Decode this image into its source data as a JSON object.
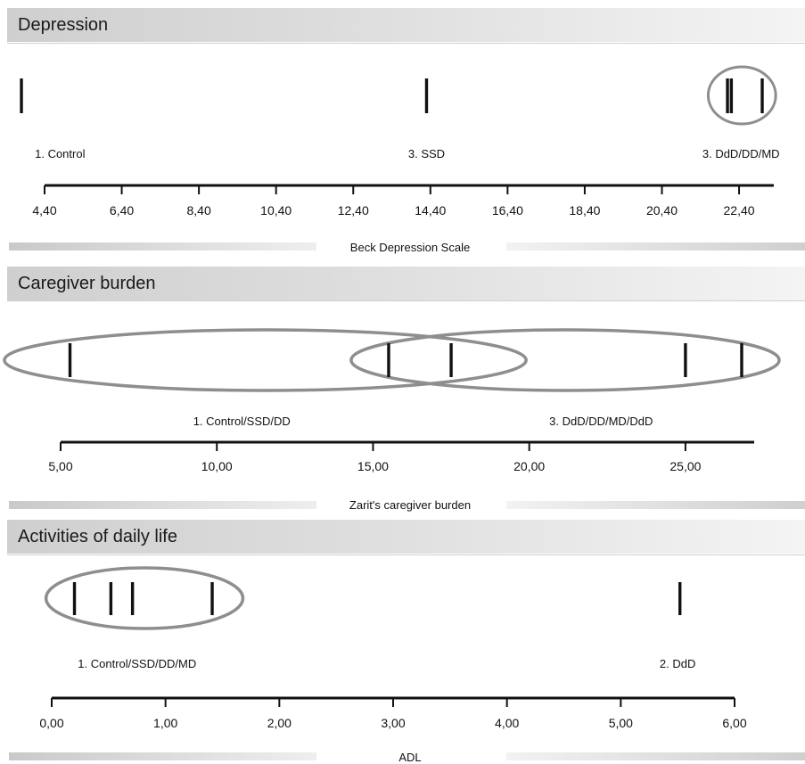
{
  "chart_data": [
    {
      "type": "scatter",
      "title": "Depression",
      "xlabel": "Beck Depression Scale",
      "xlim": [
        4.4,
        23.3
      ],
      "tick_values": [
        4.4,
        6.4,
        8.4,
        10.4,
        12.4,
        14.4,
        16.4,
        18.4,
        20.4,
        22.4
      ],
      "tick_labels": [
        "4,40",
        "6,40",
        "8,40",
        "10,40",
        "12,40",
        "14,40",
        "16,40",
        "18,40",
        "20,40",
        "22,40"
      ],
      "points": [
        3.8,
        14.3,
        22.1,
        22.2,
        23.0
      ],
      "groups": [
        {
          "label": "1. Control",
          "center": 4.8,
          "circled": false
        },
        {
          "label": "3. SSD",
          "center": 14.3,
          "circled": false
        },
        {
          "label": "3. DdD/DD/MD",
          "center": 22.45,
          "circled": true,
          "range": [
            21.6,
            23.35
          ]
        }
      ]
    },
    {
      "type": "scatter",
      "title": "Caregiver burden",
      "xlabel": "Zarit's caregiver burden",
      "xlim": [
        5.0,
        27.2
      ],
      "tick_values": [
        5,
        10,
        15,
        20,
        25
      ],
      "tick_labels": [
        "5,00",
        "10,00",
        "15,00",
        "20,00",
        "25,00"
      ],
      "points": [
        5.3,
        15.5,
        17.5,
        25.0,
        26.8
      ],
      "groups": [
        {
          "label": "1. Control/SSD/DD",
          "center": 10.8,
          "circled": true,
          "range": [
            3.2,
            19.9
          ]
        },
        {
          "label": "3. DdD/DD/MD/DdD",
          "center": 22.3,
          "circled": true,
          "range": [
            14.3,
            28.0
          ]
        }
      ]
    },
    {
      "type": "scatter",
      "title": "Activities of daily life",
      "xlabel": "ADL",
      "xlim": [
        0.0,
        6.0
      ],
      "tick_values": [
        0,
        1,
        2,
        3,
        4,
        5,
        6
      ],
      "tick_labels": [
        "0,00",
        "1,00",
        "2,00",
        "3,00",
        "4,00",
        "5,00",
        "6,00"
      ],
      "points": [
        0.2,
        0.52,
        0.71,
        1.41,
        5.52
      ],
      "groups": [
        {
          "label": "1. Control/SSD/DD/MD",
          "center": 0.75,
          "circled": true,
          "range": [
            -0.05,
            1.68
          ]
        },
        {
          "label": "2. DdD",
          "center": 5.5,
          "circled": false
        }
      ]
    }
  ]
}
